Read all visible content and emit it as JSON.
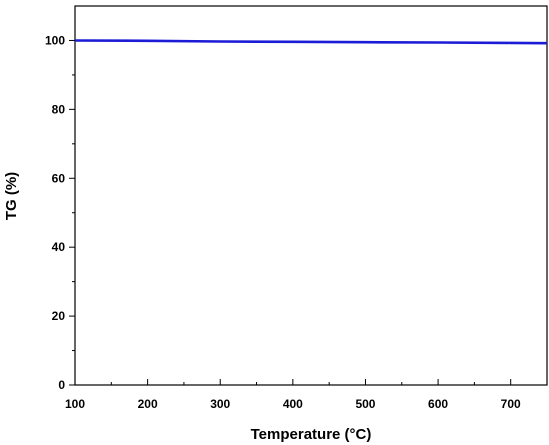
{
  "chart_data": {
    "type": "line",
    "xlabel": "Temperature (°C)",
    "ylabel": "TG (%)",
    "xlim": [
      100,
      750
    ],
    "ylim": [
      0,
      110
    ],
    "x_ticks": [
      100,
      200,
      300,
      400,
      500,
      600,
      700
    ],
    "y_ticks": [
      0,
      20,
      40,
      60,
      80,
      100
    ],
    "grid": false,
    "series": [
      {
        "color": "#1c1cd6",
        "x": [
          100,
          200,
          300,
          400,
          500,
          600,
          700,
          750
        ],
        "y": [
          100.0,
          99.9,
          99.7,
          99.6,
          99.5,
          99.4,
          99.3,
          99.2
        ]
      }
    ]
  }
}
